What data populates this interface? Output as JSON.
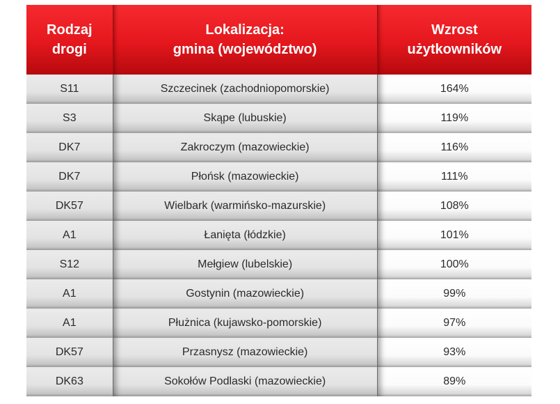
{
  "table": {
    "header": {
      "col1": [
        "Rodzaj",
        "drogi"
      ],
      "col2": [
        "Lokalizacja:",
        "gmina (województwo)"
      ],
      "col3": [
        "Wzrost",
        "użytkowników"
      ]
    },
    "header_color": "#e4171d",
    "rows": [
      {
        "road": "S11",
        "location": "Szczecinek (zachodniopomorskie)",
        "growth": "164%"
      },
      {
        "road": "S3",
        "location": "Skąpe (lubuskie)",
        "growth": "119%"
      },
      {
        "road": "DK7",
        "location": "Zakroczym (mazowieckie)",
        "growth": "116%"
      },
      {
        "road": "DK7",
        "location": "Płońsk (mazowieckie)",
        "growth": "111%"
      },
      {
        "road": "DK57",
        "location": "Wielbark (warmińsko-mazurskie)",
        "growth": "108%"
      },
      {
        "road": "A1",
        "location": "Łanięta (łódzkie)",
        "growth": "101%"
      },
      {
        "road": "S12",
        "location": "Mełgiew (lubelskie)",
        "growth": "100%"
      },
      {
        "road": "A1",
        "location": "Gostynin (mazowieckie)",
        "growth": "99%"
      },
      {
        "road": "A1",
        "location": "Płużnica (kujawsko-pomorskie)",
        "growth": "97%"
      },
      {
        "road": "DK57",
        "location": "Przasnysz (mazowieckie)",
        "growth": "93%"
      },
      {
        "road": "DK63",
        "location": "Sokołów Podlaski (mazowieckie)",
        "growth": "89%"
      }
    ]
  }
}
